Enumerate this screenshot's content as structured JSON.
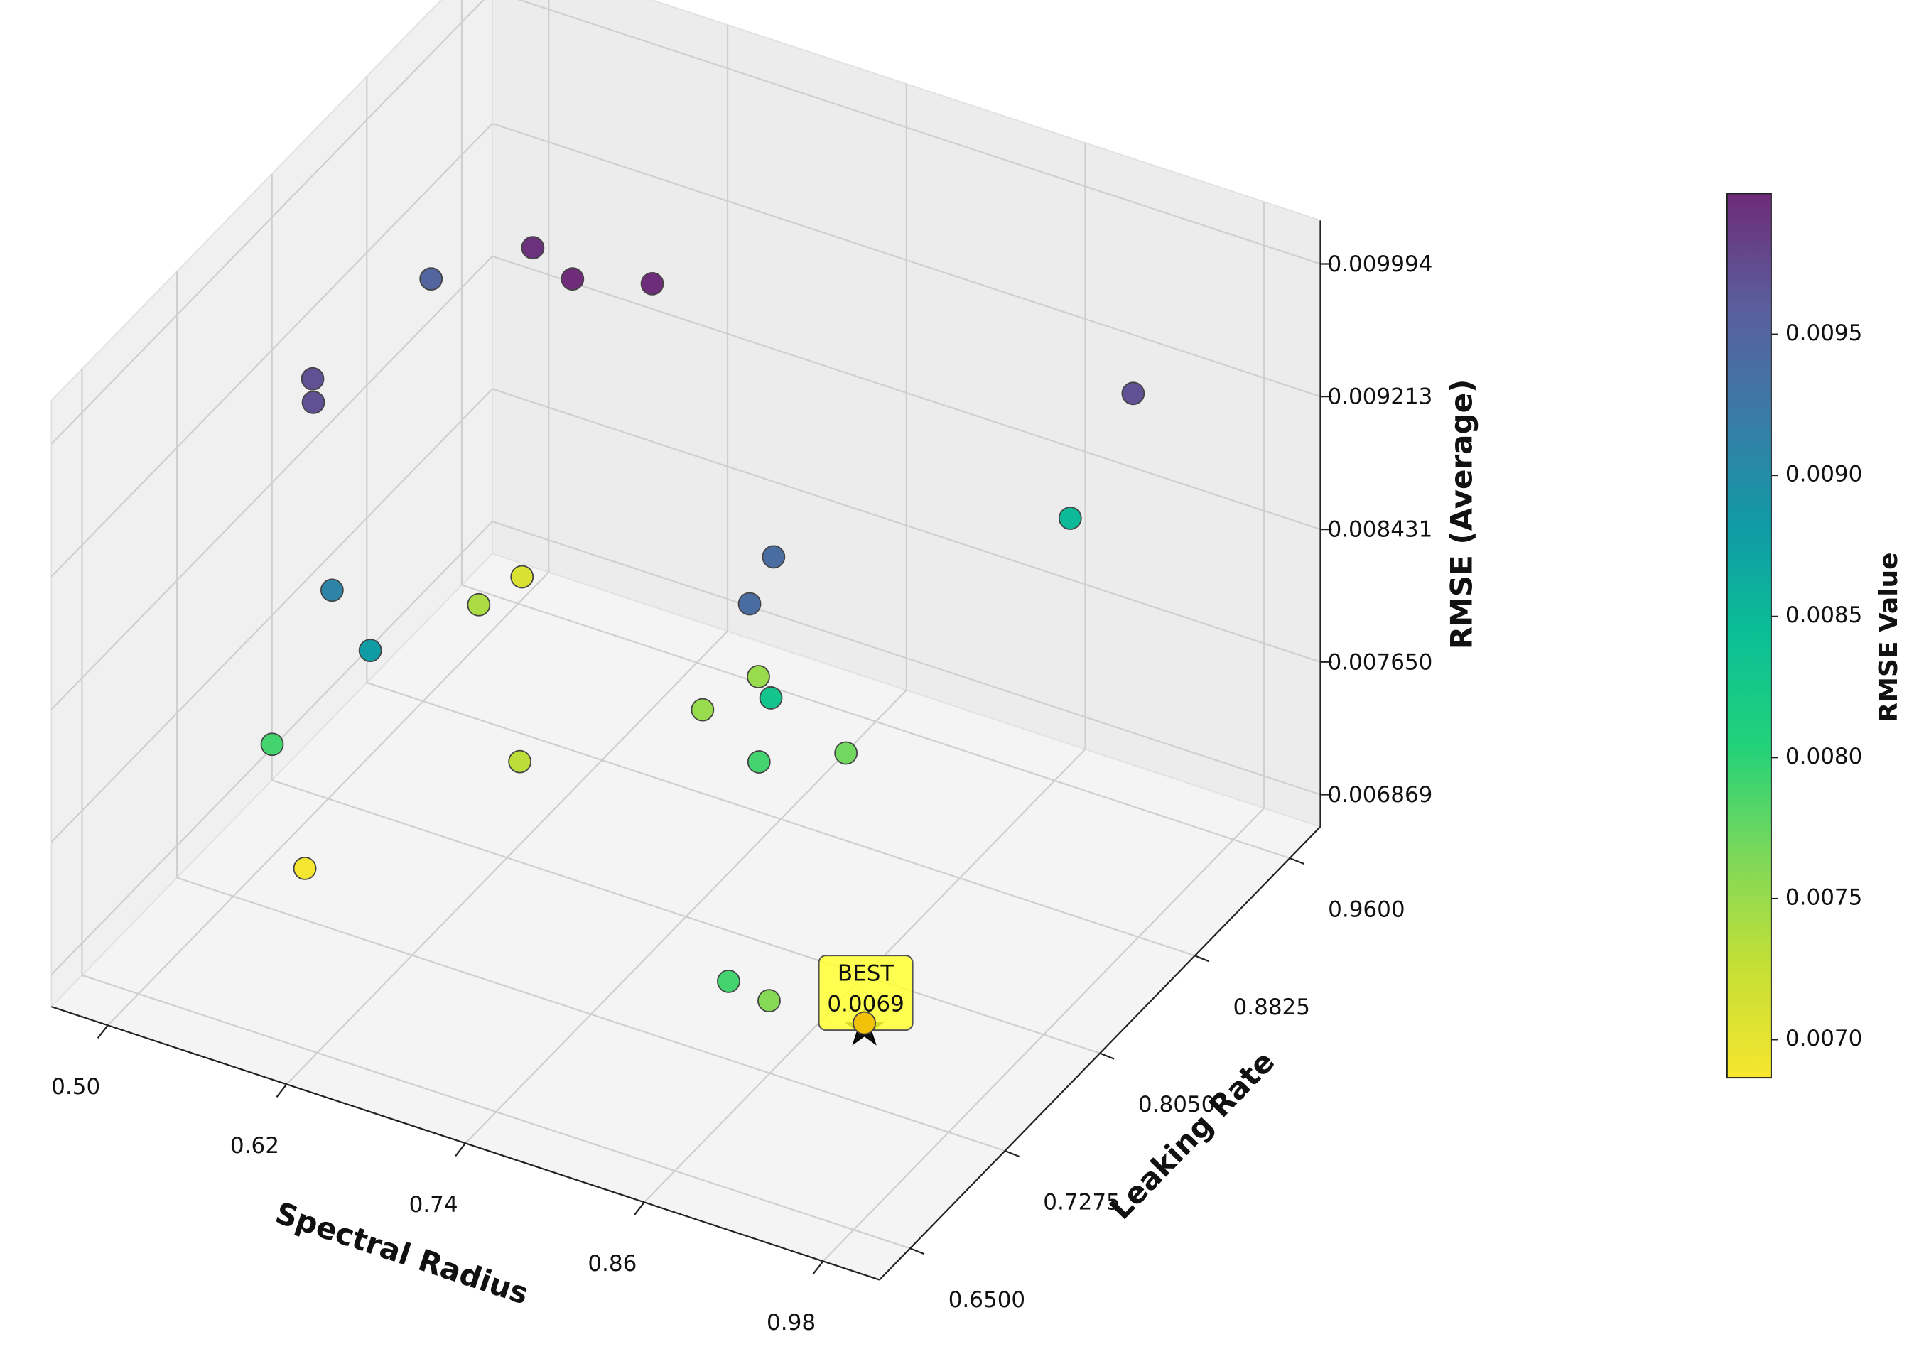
{
  "chart_data": {
    "type": "scatter3d",
    "xlabel": "Spectral Radius",
    "ylabel": "Leaking Rate",
    "zlabel": "RMSE (Average)",
    "colorbar_label": "RMSE Value",
    "xlim": [
      0.4622,
      1.0178
    ],
    "ylim": [
      0.625,
      0.985
    ],
    "zlim": [
      0.00668,
      0.01025
    ],
    "xticks": [
      {
        "value": 0.5,
        "label": "0.50"
      },
      0.62,
      0.74,
      0.86,
      0.98
    ],
    "yticks": [
      {
        "value": 0.65,
        "label": "0.6500"
      },
      0.7275,
      {
        "value": 0.805,
        "label": "0.8050"
      },
      0.8825,
      {
        "value": 0.96,
        "label": "0.9600"
      }
    ],
    "zticks": [
      0.006869,
      {
        "value": 0.00765,
        "label": "0.007650"
      },
      0.008431,
      0.009213,
      0.009994
    ],
    "clim": [
      0.006865,
      0.009999
    ],
    "cticks": [
      {
        "value": 0.007,
        "label": "0.0070"
      },
      {
        "value": 0.0075,
        "label": "0.0075"
      },
      {
        "value": 0.008,
        "label": "0.0080"
      },
      {
        "value": 0.0085,
        "label": "0.0085"
      },
      {
        "value": 0.009,
        "label": "0.0090"
      },
      {
        "value": 0.0095,
        "label": "0.0095"
      }
    ],
    "colormap": [
      "#f7e62f",
      "#c5df35",
      "#7dd85a",
      "#22d27a",
      "#0bbf95",
      "#109aa6",
      "#3a7ba6",
      "#5b5d9c",
      "#6e2b78"
    ],
    "grid": true,
    "x": [
      0.606,
      0.645,
      0.687,
      0.532,
      0.538,
      0.55,
      0.962,
      0.891,
      0.835,
      0.846,
      0.602,
      0.626,
      0.524,
      0.541,
      0.727,
      0.811,
      0.715,
      0.803,
      0.826,
      0.547,
      0.631,
      0.541,
      0.896,
      0.901,
      0.9
    ],
    "y": [
      0.843,
      0.828,
      0.842,
      0.85,
      0.746,
      0.732,
      0.9,
      0.935,
      0.761,
      0.728,
      0.684,
      0.686,
      0.934,
      0.878,
      0.88,
      0.788,
      0.849,
      0.788,
      0.831,
      0.702,
      0.802,
      0.736,
      0.65,
      0.677,
      0.756
    ],
    "z": [
      0.00995,
      0.00999,
      0.00998,
      0.0095,
      0.0097,
      0.0097,
      0.0097,
      0.0085,
      0.0094,
      0.0094,
      0.0091,
      0.0088,
      0.0071,
      0.0074,
      0.0075,
      0.0083,
      0.0075,
      0.0079,
      0.0077,
      0.0079,
      0.0073,
      0.0069,
      0.0079,
      0.0076,
      0.00688
    ],
    "annotation": [
      "BEST",
      "0.0069"
    ]
  }
}
